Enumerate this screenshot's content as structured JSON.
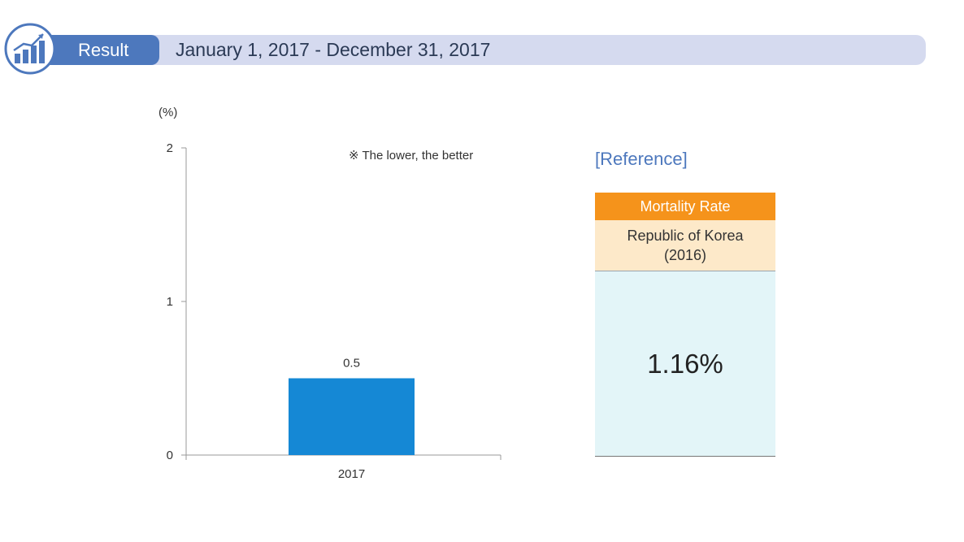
{
  "header": {
    "result_label": "Result",
    "period": "January 1, 2017 - December 31, 2017"
  },
  "chart": {
    "unit_label": "(%)",
    "note": "※ The lower, the better"
  },
  "chart_data": {
    "type": "bar",
    "categories": [
      "2017"
    ],
    "values": [
      0.5
    ],
    "data_labels": [
      "0.5"
    ],
    "ylim": [
      0,
      2
    ],
    "yticks": [
      0,
      1,
      2
    ],
    "ylabel": "(%)",
    "xlabel": "",
    "title": "",
    "grid": false,
    "bar_color": "#1588d5"
  },
  "reference": {
    "title": "[Reference]",
    "header": "Mortality Rate",
    "sub_line1": "Republic of Korea",
    "sub_line2": "(2016)",
    "value": "1.16%"
  },
  "colors": {
    "accent": "#4d78bd",
    "banner": "#d5daef",
    "orange": "#f5931b",
    "bar": "#1588d5"
  }
}
